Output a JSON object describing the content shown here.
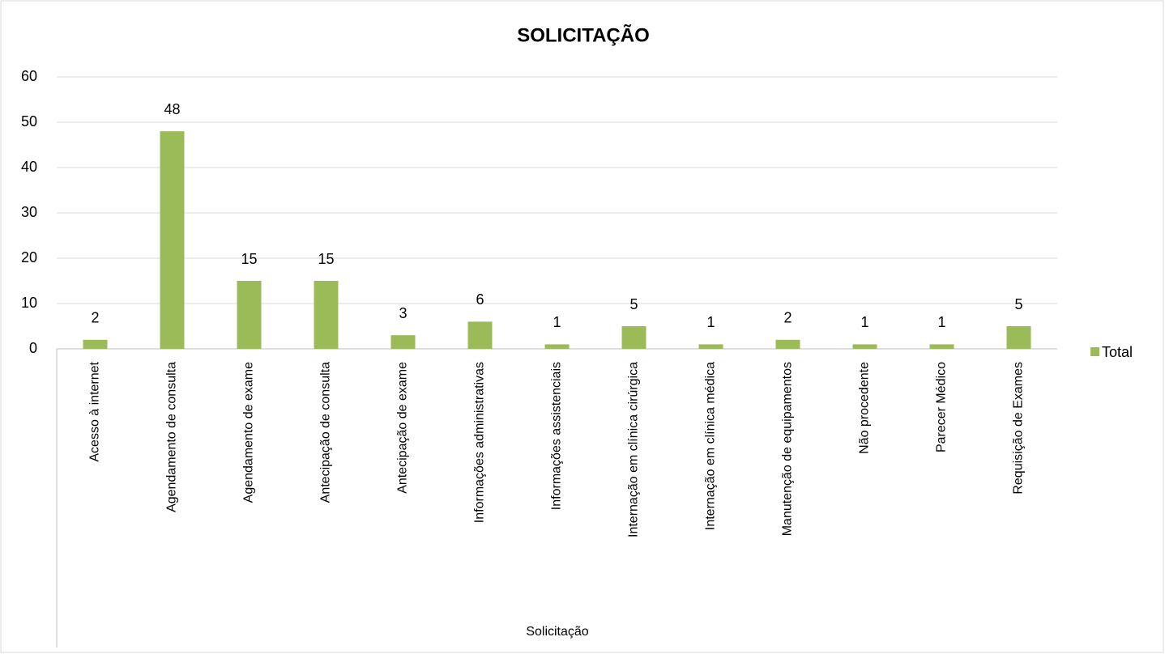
{
  "chart_data": {
    "type": "bar",
    "title": "SOLICITAÇÃO",
    "x_label": "Solicitação",
    "categories": [
      "Acesso à internet",
      "Agendamento de consulta",
      "Agendamento de exame",
      "Antecipação de consulta",
      "Antecipação de exame",
      "Informações administrativas",
      "Informações assistenciais",
      "Internação em clínica cirúrgica",
      "Internação em clínica médica",
      "Manutenção de equipamentos",
      "Não procedente",
      "Parecer Médico",
      "Requisição de Exames"
    ],
    "series": [
      {
        "name": "Total",
        "color": "#9bbb59",
        "values": [
          2,
          48,
          15,
          15,
          3,
          6,
          1,
          5,
          1,
          2,
          1,
          1,
          5
        ]
      }
    ],
    "ylim": [
      0,
      60
    ],
    "yticks": [
      0,
      10,
      20,
      30,
      40,
      50,
      60
    ],
    "grid": true,
    "legend": "right",
    "data_labels": true
  }
}
